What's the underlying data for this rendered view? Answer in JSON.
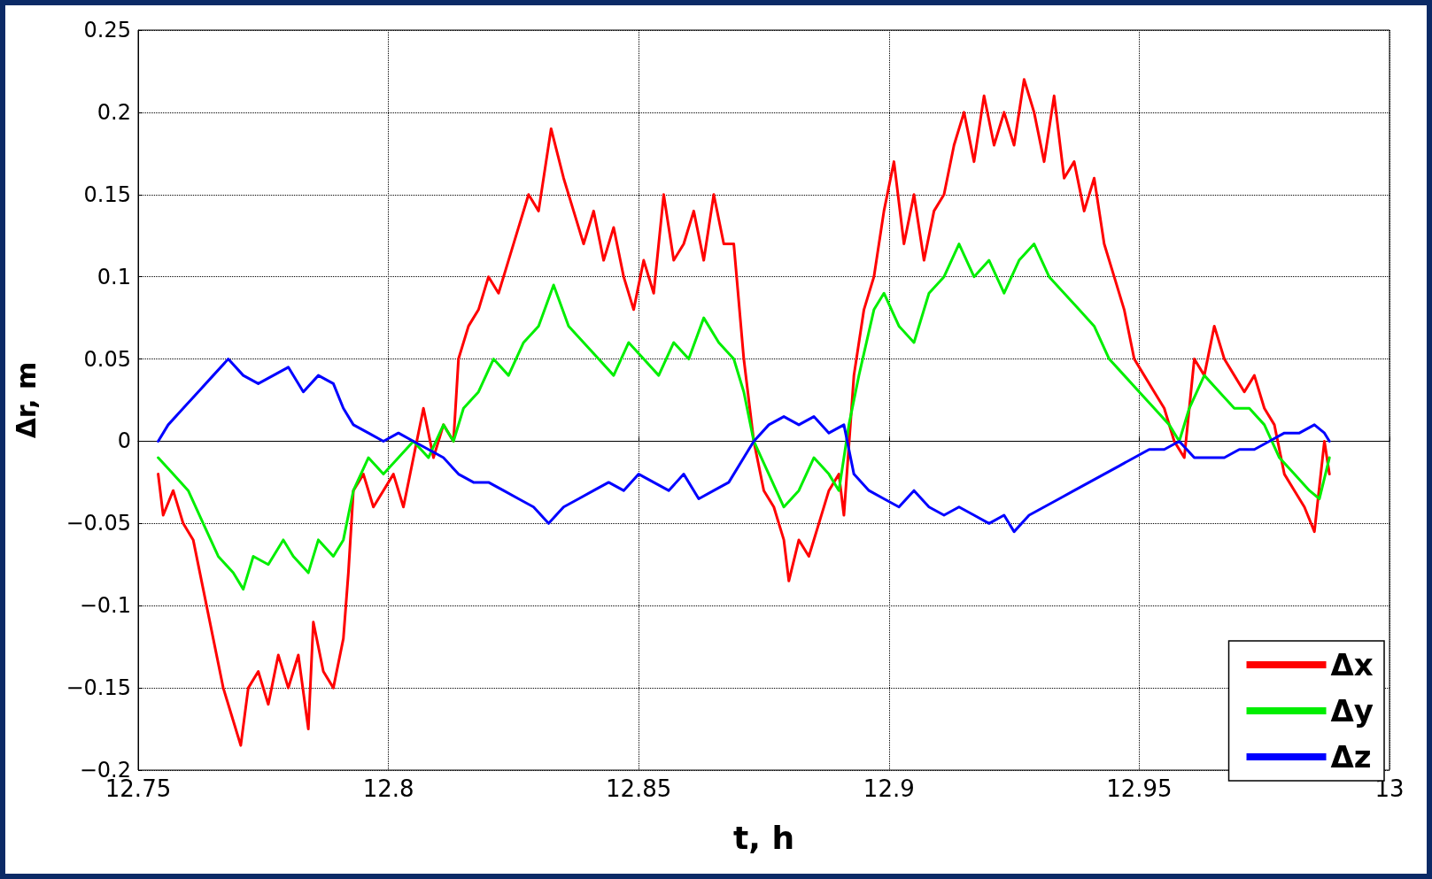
{
  "chart_data": {
    "type": "line",
    "xlabel": "t, h",
    "ylabel": "Δr, m",
    "xlim": [
      12.75,
      13
    ],
    "xticks": [
      12.75,
      12.8,
      12.85,
      12.9,
      12.95,
      13
    ],
    "ylim": [
      -0.2,
      0.25
    ],
    "yticks": [
      {
        "value": -0.2,
        "label": "−0.2"
      },
      {
        "value": -0.15,
        "label": "−0.15"
      },
      {
        "value": -0.1,
        "label": "−0.1"
      },
      {
        "value": -0.05,
        "label": "−0.05"
      },
      0,
      0.05,
      0.1,
      0.15,
      0.2,
      0.25
    ],
    "grid": true,
    "legend": "bottom right",
    "marker": "none",
    "line_style": "solid",
    "series": [
      {
        "name": "Δx",
        "color": "#ff0000",
        "x": [
          12.754,
          12.755,
          12.757,
          12.759,
          12.761,
          12.763,
          12.765,
          12.767,
          12.769,
          12.7705,
          12.772,
          12.774,
          12.776,
          12.778,
          12.78,
          12.782,
          12.784,
          12.785,
          12.787,
          12.789,
          12.791,
          12.792,
          12.793,
          12.795,
          12.797,
          12.799,
          12.801,
          12.803,
          12.805,
          12.807,
          12.809,
          12.811,
          12.813,
          12.814,
          12.816,
          12.818,
          12.82,
          12.822,
          12.824,
          12.826,
          12.828,
          12.83,
          12.8325,
          12.835,
          12.837,
          12.839,
          12.841,
          12.843,
          12.845,
          12.847,
          12.849,
          12.851,
          12.853,
          12.855,
          12.857,
          12.859,
          12.861,
          12.863,
          12.865,
          12.867,
          12.869,
          12.871,
          12.873,
          12.875,
          12.877,
          12.879,
          12.88,
          12.882,
          12.884,
          12.886,
          12.888,
          12.89,
          12.891,
          12.893,
          12.895,
          12.897,
          12.899,
          12.901,
          12.903,
          12.905,
          12.907,
          12.909,
          12.911,
          12.913,
          12.915,
          12.917,
          12.919,
          12.921,
          12.923,
          12.925,
          12.927,
          12.929,
          12.931,
          12.933,
          12.935,
          12.937,
          12.939,
          12.941,
          12.943,
          12.945,
          12.947,
          12.949,
          12.951,
          12.953,
          12.955,
          12.957,
          12.959,
          12.961,
          12.963,
          12.965,
          12.967,
          12.969,
          12.971,
          12.973,
          12.975,
          12.977,
          12.979,
          12.981,
          12.983,
          12.985,
          12.987,
          12.988
        ],
        "values": [
          -0.02,
          -0.045,
          -0.03,
          -0.05,
          -0.06,
          -0.09,
          -0.12,
          -0.15,
          -0.17,
          -0.185,
          -0.15,
          -0.14,
          -0.16,
          -0.13,
          -0.15,
          -0.13,
          -0.175,
          -0.11,
          -0.14,
          -0.15,
          -0.12,
          -0.08,
          -0.03,
          -0.02,
          -0.04,
          -0.03,
          -0.02,
          -0.04,
          -0.01,
          0.02,
          -0.01,
          0.01,
          0,
          0.05,
          0.07,
          0.08,
          0.1,
          0.09,
          0.11,
          0.13,
          0.15,
          0.14,
          0.19,
          0.16,
          0.14,
          0.12,
          0.14,
          0.11,
          0.13,
          0.1,
          0.08,
          0.11,
          0.09,
          0.15,
          0.11,
          0.12,
          0.14,
          0.11,
          0.15,
          0.12,
          0.12,
          0.05,
          0,
          -0.03,
          -0.04,
          -0.06,
          -0.085,
          -0.06,
          -0.07,
          -0.05,
          -0.03,
          -0.02,
          -0.045,
          0.04,
          0.08,
          0.1,
          0.14,
          0.17,
          0.12,
          0.15,
          0.11,
          0.14,
          0.15,
          0.18,
          0.2,
          0.17,
          0.21,
          0.18,
          0.2,
          0.18,
          0.22,
          0.2,
          0.17,
          0.21,
          0.16,
          0.17,
          0.14,
          0.16,
          0.12,
          0.1,
          0.08,
          0.05,
          0.04,
          0.03,
          0.02,
          0,
          -0.01,
          0.05,
          0.04,
          0.07,
          0.05,
          0.04,
          0.03,
          0.04,
          0.02,
          0.01,
          -0.02,
          -0.03,
          -0.04,
          -0.055,
          0,
          -0.02
        ]
      },
      {
        "name": "Δy",
        "color": "#00ee00",
        "x": [
          12.754,
          12.757,
          12.76,
          12.763,
          12.766,
          12.769,
          12.771,
          12.773,
          12.776,
          12.779,
          12.781,
          12.784,
          12.786,
          12.789,
          12.791,
          12.793,
          12.796,
          12.799,
          12.802,
          12.805,
          12.808,
          12.811,
          12.813,
          12.815,
          12.818,
          12.821,
          12.824,
          12.827,
          12.83,
          12.833,
          12.836,
          12.839,
          12.842,
          12.845,
          12.848,
          12.851,
          12.854,
          12.857,
          12.86,
          12.863,
          12.866,
          12.869,
          12.871,
          12.873,
          12.876,
          12.879,
          12.882,
          12.885,
          12.888,
          12.89,
          12.892,
          12.894,
          12.897,
          12.899,
          12.902,
          12.905,
          12.908,
          12.911,
          12.914,
          12.917,
          12.92,
          12.923,
          12.926,
          12.929,
          12.932,
          12.935,
          12.938,
          12.941,
          12.944,
          12.947,
          12.95,
          12.953,
          12.956,
          12.958,
          12.96,
          12.963,
          12.966,
          12.969,
          12.972,
          12.975,
          12.978,
          12.981,
          12.984,
          12.986,
          12.988
        ],
        "values": [
          -0.01,
          -0.02,
          -0.03,
          -0.05,
          -0.07,
          -0.08,
          -0.09,
          -0.07,
          -0.075,
          -0.06,
          -0.07,
          -0.08,
          -0.06,
          -0.07,
          -0.06,
          -0.03,
          -0.01,
          -0.02,
          -0.01,
          0,
          -0.01,
          0.01,
          0,
          0.02,
          0.03,
          0.05,
          0.04,
          0.06,
          0.07,
          0.095,
          0.07,
          0.06,
          0.05,
          0.04,
          0.06,
          0.05,
          0.04,
          0.06,
          0.05,
          0.075,
          0.06,
          0.05,
          0.03,
          0,
          -0.02,
          -0.04,
          -0.03,
          -0.01,
          -0.02,
          -0.03,
          0.01,
          0.04,
          0.08,
          0.09,
          0.07,
          0.06,
          0.09,
          0.1,
          0.12,
          0.1,
          0.11,
          0.09,
          0.11,
          0.12,
          0.1,
          0.09,
          0.08,
          0.07,
          0.05,
          0.04,
          0.03,
          0.02,
          0.01,
          0,
          0.02,
          0.04,
          0.03,
          0.02,
          0.02,
          0.01,
          -0.01,
          -0.02,
          -0.03,
          -0.035,
          -0.01
        ]
      },
      {
        "name": "Δz",
        "color": "#0000ff",
        "x": [
          12.754,
          12.756,
          12.759,
          12.762,
          12.765,
          12.768,
          12.771,
          12.774,
          12.777,
          12.78,
          12.783,
          12.786,
          12.789,
          12.791,
          12.793,
          12.796,
          12.799,
          12.802,
          12.805,
          12.808,
          12.811,
          12.814,
          12.817,
          12.82,
          12.823,
          12.826,
          12.829,
          12.832,
          12.835,
          12.838,
          12.841,
          12.844,
          12.847,
          12.85,
          12.853,
          12.856,
          12.859,
          12.862,
          12.865,
          12.868,
          12.871,
          12.873,
          12.876,
          12.879,
          12.882,
          12.885,
          12.888,
          12.891,
          12.893,
          12.896,
          12.899,
          12.902,
          12.905,
          12.908,
          12.911,
          12.914,
          12.917,
          12.92,
          12.923,
          12.925,
          12.928,
          12.931,
          12.934,
          12.937,
          12.94,
          12.943,
          12.946,
          12.949,
          12.952,
          12.955,
          12.958,
          12.961,
          12.964,
          12.967,
          12.97,
          12.973,
          12.976,
          12.979,
          12.982,
          12.985,
          12.987,
          12.988
        ],
        "values": [
          0,
          0.01,
          0.02,
          0.03,
          0.04,
          0.05,
          0.04,
          0.035,
          0.04,
          0.045,
          0.03,
          0.04,
          0.035,
          0.02,
          0.01,
          0.005,
          0,
          0.005,
          0,
          -0.005,
          -0.01,
          -0.02,
          -0.025,
          -0.025,
          -0.03,
          -0.035,
          -0.04,
          -0.05,
          -0.04,
          -0.035,
          -0.03,
          -0.025,
          -0.03,
          -0.02,
          -0.025,
          -0.03,
          -0.02,
          -0.035,
          -0.03,
          -0.025,
          -0.01,
          0,
          0.01,
          0.015,
          0.01,
          0.015,
          0.005,
          0.01,
          -0.02,
          -0.03,
          -0.035,
          -0.04,
          -0.03,
          -0.04,
          -0.045,
          -0.04,
          -0.045,
          -0.05,
          -0.045,
          -0.055,
          -0.045,
          -0.04,
          -0.035,
          -0.03,
          -0.025,
          -0.02,
          -0.015,
          -0.01,
          -0.005,
          -0.005,
          0,
          -0.01,
          -0.01,
          -0.01,
          -0.005,
          -0.005,
          0,
          0.005,
          0.005,
          0.01,
          0.005,
          0
        ]
      }
    ]
  }
}
